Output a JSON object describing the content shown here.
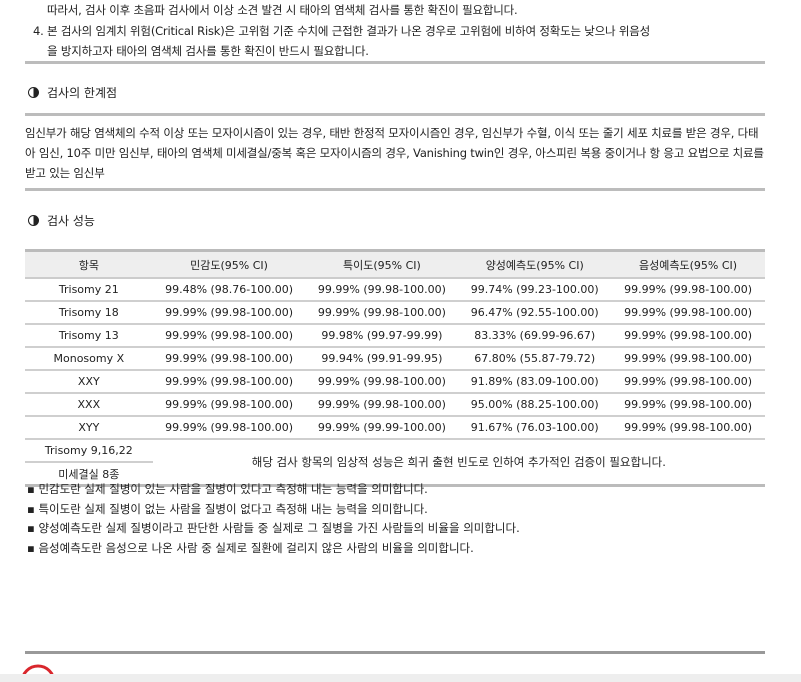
{
  "intro": {
    "line1": "따라서, 검사 이후 초음파 검사에서 이상 소견 발견 시 태아의 염색체 검사를 통한 확진이 필요합니다.",
    "item4_line1": "4. 본 검사의 임계치 위험(Critical Risk)은 고위험 기준 수치에 근접한 결과가 나온 경우로 고위험에 비하여 정확도는 낮으나 위음성",
    "item4_line2": "을 방지하고자 태아의 염색체 검사를 통한 확진이 반드시 필요합니다."
  },
  "limits": {
    "title": "검사의 한계점",
    "text": "임신부가 해당 염색체의 수적 이상 또는 모자이시즘이 있는 경우, 태반 한정적 모자이시즘인 경우, 임신부가 수혈, 이식 또는 줄기 세포 치료를 받은 경우, 다태아 임신, 10주 미만 임신부, 태아의 염색체 미세결실/중복 혹은 모자이시즘의 경우, Vanishing twin인 경우, 아스피린 복용 중이거나 항 응고 요법으로 치료를 받고 있는 임신부"
  },
  "performance": {
    "title": "검사 성능",
    "headers": [
      "항목",
      "민감도(95% CI)",
      "특이도(95% CI)",
      "양성예측도(95% CI)",
      "음성예측도(95% CI)"
    ],
    "rows": [
      [
        "Trisomy 21",
        "99.48% (98.76-100.00)",
        "99.99% (99.98-100.00)",
        "99.74% (99.23-100.00)",
        "99.99% (99.98-100.00)"
      ],
      [
        "Trisomy 18",
        "99.99% (99.98-100.00)",
        "99.99% (99.98-100.00)",
        "96.47% (92.55-100.00)",
        "99.99% (99.98-100.00)"
      ],
      [
        "Trisomy 13",
        "99.99% (99.98-100.00)",
        "99.98% (99.97-99.99)",
        "83.33% (69.99-96.67)",
        "99.99% (99.98-100.00)"
      ],
      [
        "Monosomy X",
        "99.99% (99.98-100.00)",
        "99.94% (99.91-99.95)",
        "67.80% (55.87-79.72)",
        "99.99% (99.98-100.00)"
      ],
      [
        "XXY",
        "99.99% (99.98-100.00)",
        "99.99% (99.98-100.00)",
        "91.89% (83.09-100.00)",
        "99.99% (99.98-100.00)"
      ],
      [
        "XXX",
        "99.99% (99.98-100.00)",
        "99.99% (99.98-100.00)",
        "95.00% (88.25-100.00)",
        "99.99% (99.98-100.00)"
      ],
      [
        "XYY",
        "99.99% (99.98-100.00)",
        "99.99% (99.99-100.00)",
        "91.67% (76.03-100.00)",
        "99.99% (99.98-100.00)"
      ]
    ],
    "extra_items": [
      "Trisomy 9,16,22",
      "미세결실 8종"
    ],
    "extra_note": "해당 검사 항목의 임상적 성능은 희귀 출현 빈도로 인하여 추가적인 검증이 필요합니다."
  },
  "notes": [
    "민감도란 실제 질병이 있는 사람을 질병이 있다고 측정해 내는 능력을 의미합니다.",
    "특이도란 실제 질병이 없는 사람을 질병이 없다고 측정해 내는 능력을 의미합니다.",
    "양성예측도란 실제 질병이라고 판단한 사람들 중 실제로 그 질병을 가진 사람들의 비율을 의미합니다.",
    "음성예측도란 음성으로 나온 사람 중 실제로 질환에 걸리지 않은 사람의 비율을 의미합니다."
  ],
  "colors": {
    "logo": "#d9262c",
    "divider": "#bcbcbc",
    "header_bg": "#eeeeee"
  }
}
